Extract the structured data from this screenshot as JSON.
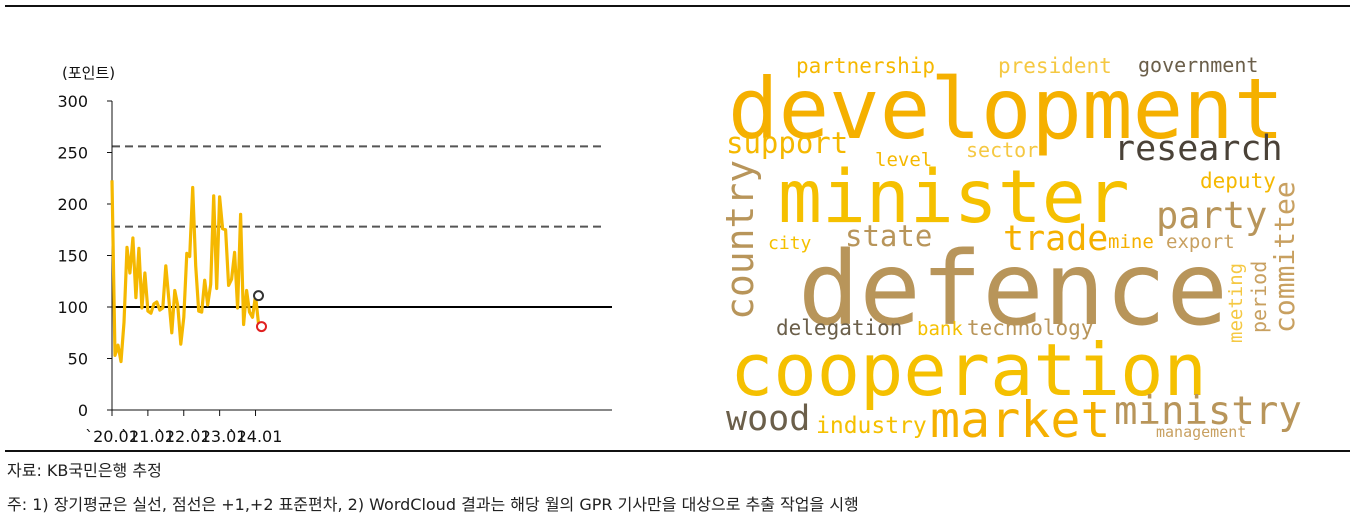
{
  "chart_data": {
    "type": "line",
    "unit_label": "(포인트)",
    "ylim": [
      0,
      300
    ],
    "yticks": [
      0,
      50,
      100,
      150,
      200,
      250,
      300
    ],
    "xticks": [
      "`20.01",
      "`21.01",
      "`22.01",
      "`23.01",
      "`24.01"
    ],
    "series": [
      {
        "color": "#f5b800",
        "x_start": "2020-01",
        "values": [
          223,
          53,
          63,
          47,
          85,
          158,
          133,
          167,
          109,
          157,
          99,
          133,
          96,
          94,
          103,
          105,
          97,
          99,
          140,
          108,
          75,
          116,
          101,
          64,
          90,
          152,
          149,
          216,
          140,
          96,
          95,
          126,
          102,
          122,
          208,
          118,
          207,
          176,
          175,
          121,
          127,
          153,
          99,
          190,
          83,
          116,
          95,
          90,
          111,
          84
        ]
      }
    ],
    "reference_lines": [
      {
        "value": 100,
        "style": "solid",
        "color": "#000000"
      },
      {
        "value": 178,
        "style": "dashed",
        "color": "#555555"
      },
      {
        "value": 256,
        "style": "dashed",
        "color": "#555555"
      }
    ],
    "markers": [
      {
        "month": "2024-02",
        "value": 111,
        "color": "#333333"
      },
      {
        "month": "2024-03",
        "value": 81,
        "color": "#e02020"
      }
    ]
  },
  "wordcloud": {
    "words": [
      {
        "text": "partnership",
        "color": "#f5b800"
      },
      {
        "text": "president",
        "color": "#f5c842"
      },
      {
        "text": "government",
        "color": "#6b5f4a"
      },
      {
        "text": "development",
        "color": "#f5b000"
      },
      {
        "text": "support",
        "color": "#f5b800"
      },
      {
        "text": "level",
        "color": "#f5b800"
      },
      {
        "text": "sector",
        "color": "#f5c842"
      },
      {
        "text": "research",
        "color": "#4a4238"
      },
      {
        "text": "country",
        "color": "#b8955a"
      },
      {
        "text": "minister",
        "color": "#f5c000"
      },
      {
        "text": "deputy",
        "color": "#f5b800"
      },
      {
        "text": "party",
        "color": "#b8955a"
      },
      {
        "text": "committee",
        "color": "#c8a060"
      },
      {
        "text": "city",
        "color": "#f5c000"
      },
      {
        "text": "state",
        "color": "#b8955a"
      },
      {
        "text": "trade",
        "color": "#f5b000"
      },
      {
        "text": "mine",
        "color": "#f5b000"
      },
      {
        "text": "export",
        "color": "#c8a060"
      },
      {
        "text": "defence",
        "color": "#b8955a"
      },
      {
        "text": "meeting",
        "color": "#f5c842"
      },
      {
        "text": "period",
        "color": "#c8a060"
      },
      {
        "text": "delegation",
        "color": "#6b5f4a"
      },
      {
        "text": "bank",
        "color": "#f5c000"
      },
      {
        "text": "technology",
        "color": "#b8955a"
      },
      {
        "text": "cooperation",
        "color": "#f5c000"
      },
      {
        "text": "wood",
        "color": "#6b5f4a"
      },
      {
        "text": "industry",
        "color": "#f5c000"
      },
      {
        "text": "market",
        "color": "#f5b000"
      },
      {
        "text": "ministry",
        "color": "#b8955a"
      },
      {
        "text": "management",
        "color": "#c8a060"
      }
    ]
  },
  "source": "자료: KB국민은행 추정",
  "note": "주: 1) 장기평균은 실선, 점선은 +1,+2 표준편차, 2) WordCloud 결과는 해당 월의 GPR 기사만을 대상으로 추출 작업을 시행"
}
